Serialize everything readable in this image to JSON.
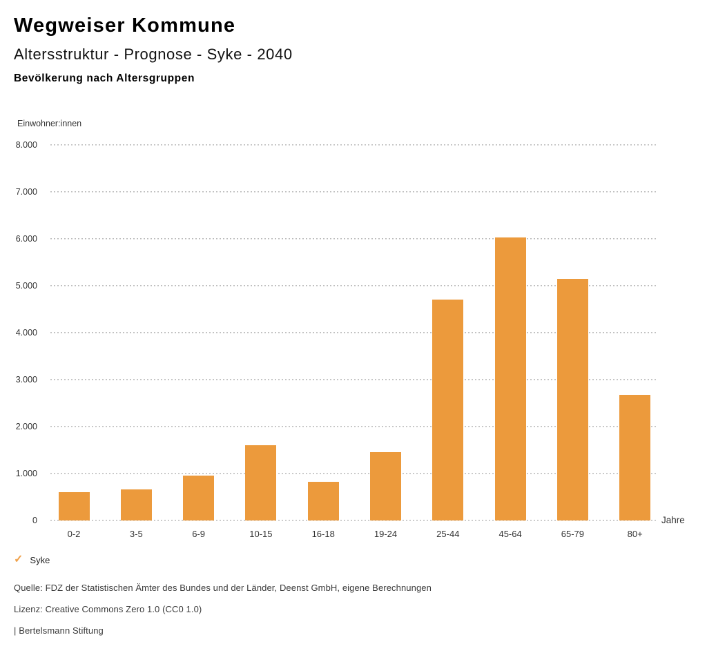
{
  "header": {
    "title": "Wegweiser Kommune",
    "subtitle": "Altersstruktur - Prognose - Syke - 2040",
    "chart_heading": "Bevölkerung nach Altersgruppen"
  },
  "chart_data": {
    "type": "bar",
    "title": "Bevölkerung nach Altersgruppen",
    "series_name": "Syke",
    "categories": [
      "0-2",
      "3-5",
      "6-9",
      "10-15",
      "16-18",
      "19-24",
      "25-44",
      "45-64",
      "65-79",
      "80+"
    ],
    "values": [
      610,
      655,
      960,
      1610,
      830,
      1450,
      4700,
      6030,
      5150,
      2680
    ],
    "xlabel": "Jahre",
    "ylabel": "Einwohner:innen",
    "ylim": [
      0,
      8000
    ],
    "ytick_step": 1000,
    "ytick_labels_top_to_bottom": [
      "8.000",
      "7.000",
      "6.000",
      "5.000",
      "4.000",
      "3.000",
      "2.000",
      "1.000",
      "0"
    ],
    "grid": "horizontal dotted",
    "legend_position": "bottom-left",
    "bar_color": "#EC9A3C",
    "gridline_color": "#BDBDBD"
  },
  "legend": {
    "check_icon": "✓",
    "check_color": "#F0A24C",
    "label": "Syke"
  },
  "footer": {
    "source": "Quelle: FDZ der Statistischen Ämter des Bundes und der Länder, Deenst GmbH, eigene Berechnungen",
    "license": "Lizenz: Creative Commons Zero 1.0 (CC0 1.0)",
    "publisher": "| Bertelsmann Stiftung"
  }
}
